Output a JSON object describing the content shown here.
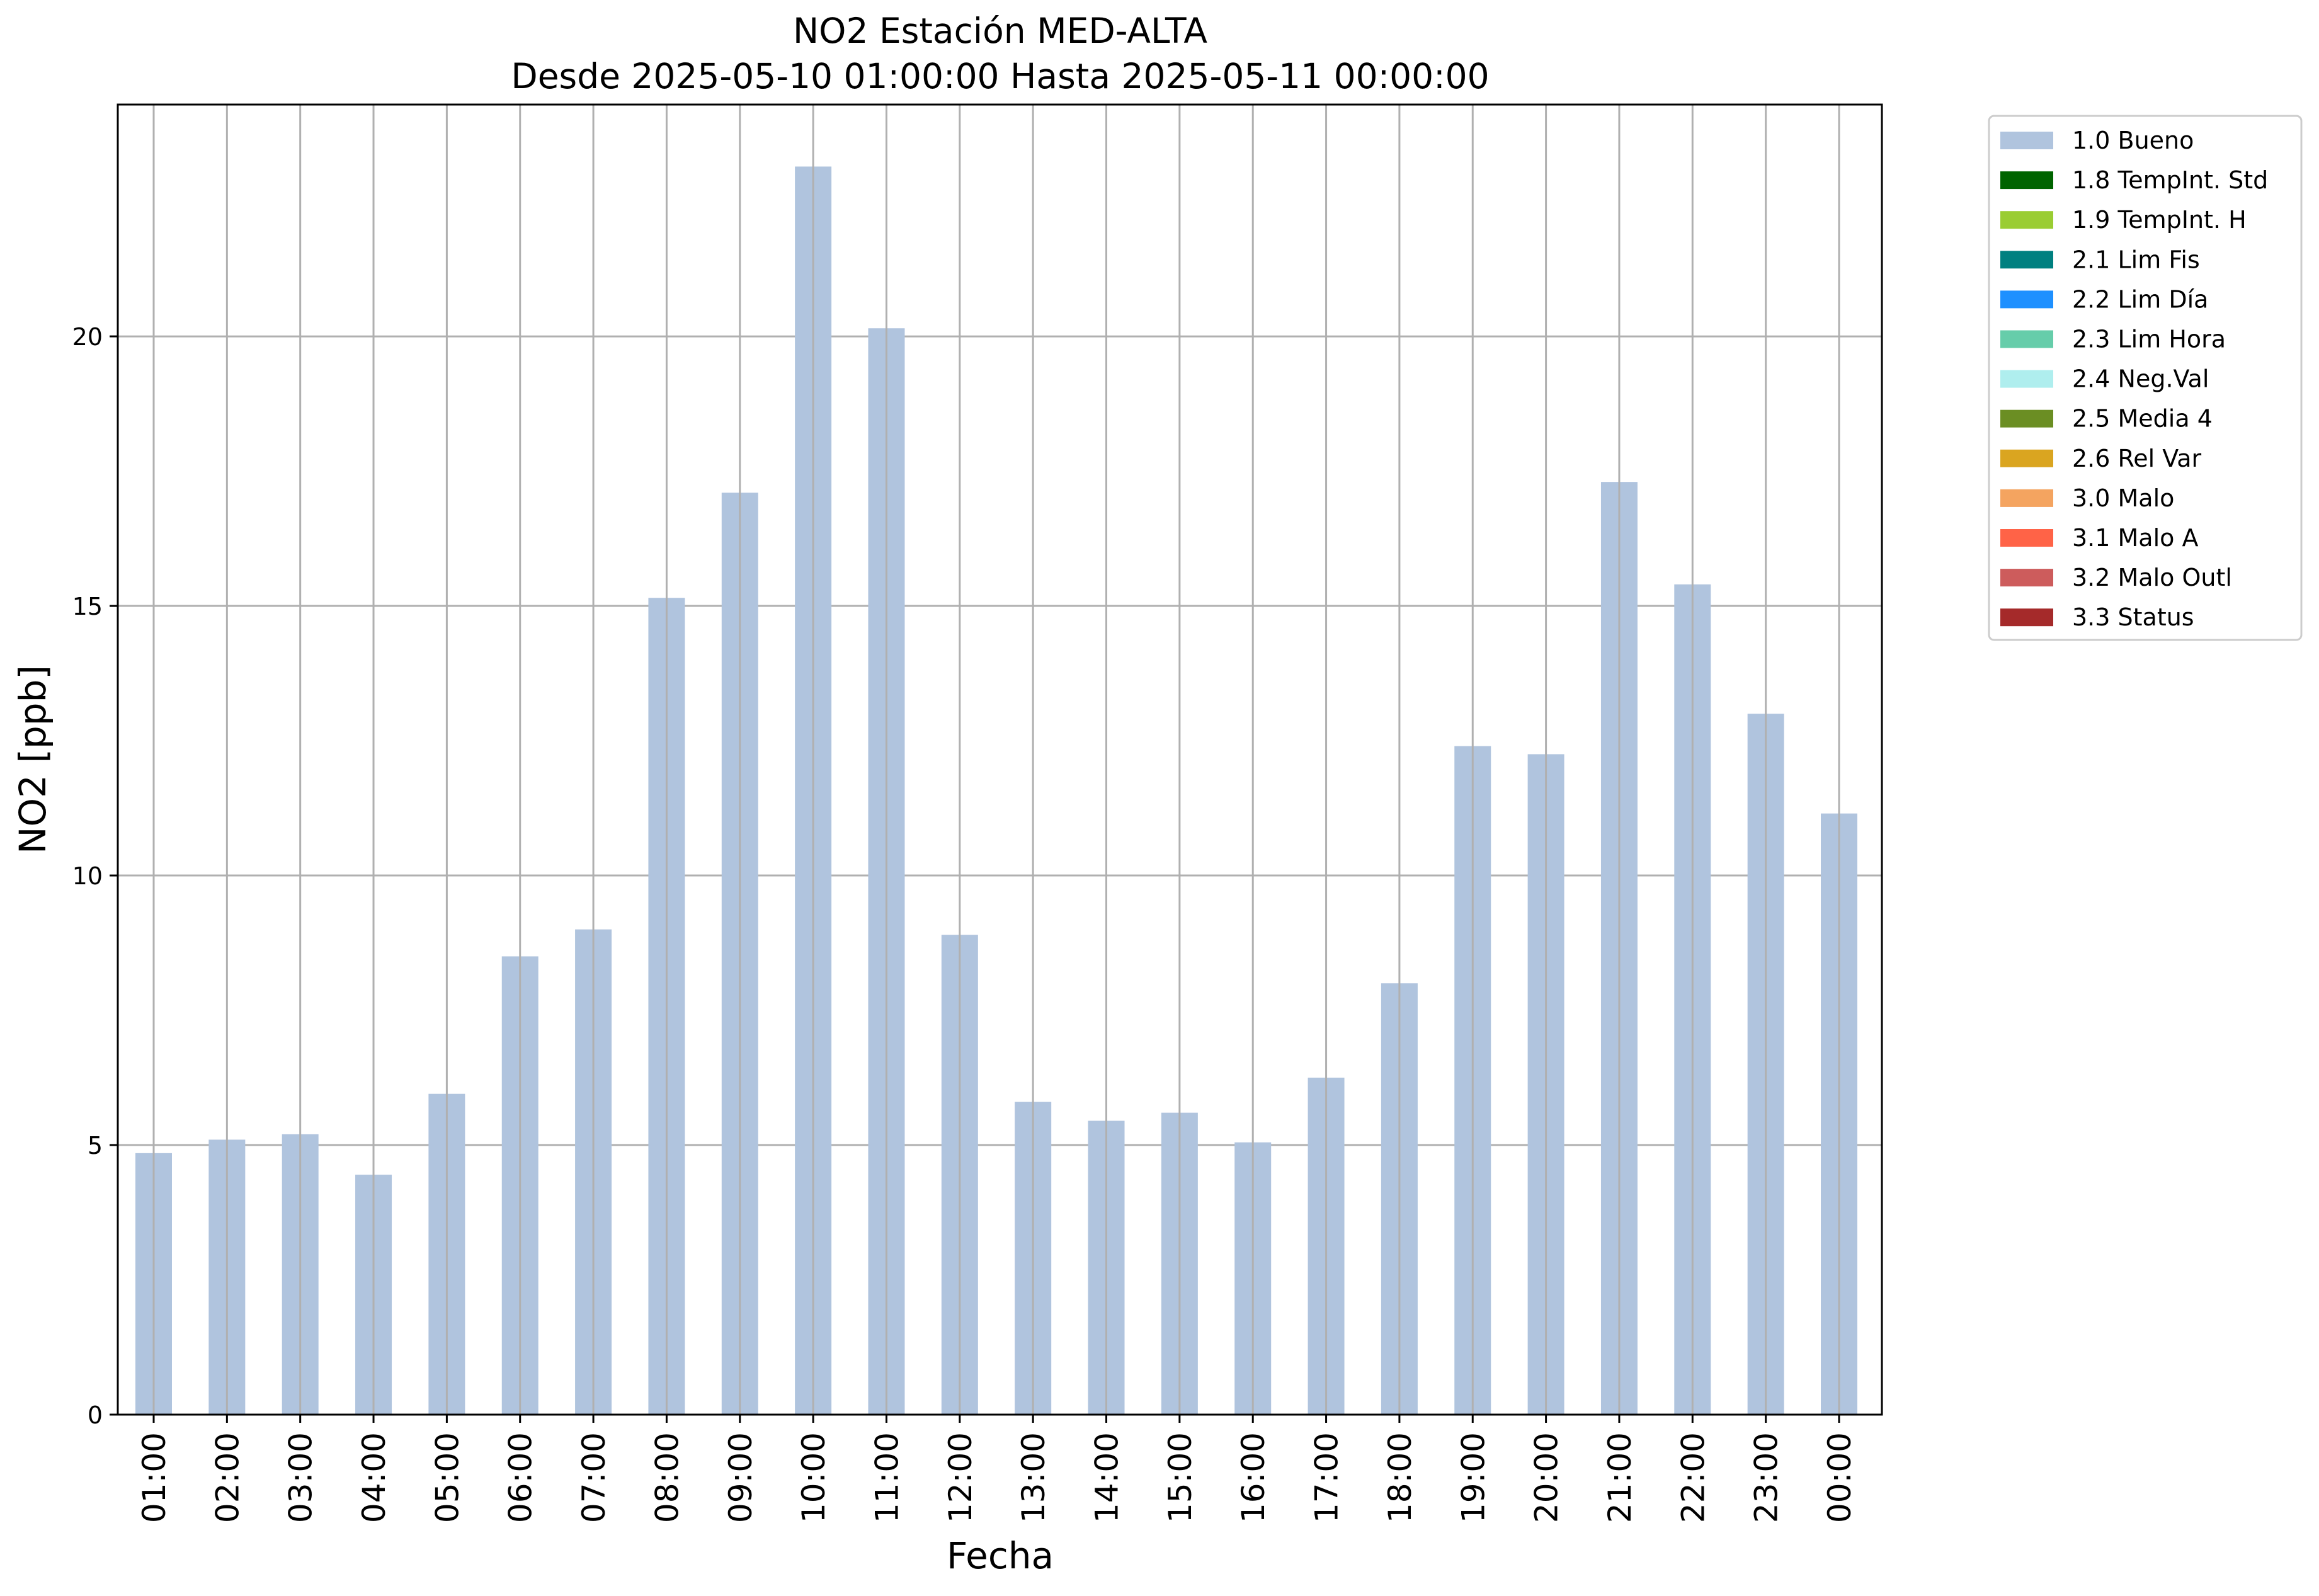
{
  "chart_data": {
    "type": "bar",
    "title": "NO2 Estación MED-ALTA",
    "subtitle": "Desde 2025-05-10 01:00:00 Hasta 2025-05-11 00:00:00",
    "xlabel": "Fecha",
    "ylabel": "NO2 [ppb]",
    "ylim": [
      0,
      24.3
    ],
    "yticks": [
      0,
      5,
      10,
      15,
      20
    ],
    "grid": true,
    "legend_placement": "outside-top-right",
    "categories": [
      "01:00",
      "02:00",
      "03:00",
      "04:00",
      "05:00",
      "06:00",
      "07:00",
      "08:00",
      "09:00",
      "10:00",
      "11:00",
      "12:00",
      "13:00",
      "14:00",
      "15:00",
      "16:00",
      "17:00",
      "18:00",
      "19:00",
      "20:00",
      "21:00",
      "22:00",
      "23:00",
      "00:00"
    ],
    "series": [
      {
        "name": "1.0 Bueno",
        "color": "#b0c4de",
        "values": [
          4.85,
          5.1,
          5.2,
          4.45,
          5.95,
          8.5,
          9.0,
          15.15,
          17.1,
          23.15,
          20.15,
          8.9,
          5.8,
          5.45,
          5.6,
          5.05,
          6.25,
          8.0,
          12.4,
          12.25,
          17.3,
          15.4,
          13.0,
          11.15
        ]
      }
    ],
    "legend": [
      {
        "label": "1.0 Bueno",
        "color": "#b0c4de"
      },
      {
        "label": "1.8 TempInt. Std",
        "color": "#006400"
      },
      {
        "label": "1.9 TempInt. H",
        "color": "#9acd32"
      },
      {
        "label": "2.1 Lim Fis",
        "color": "#008080"
      },
      {
        "label": "2.2 Lim Día",
        "color": "#1e90ff"
      },
      {
        "label": "2.3 Lim Hora",
        "color": "#66cdaa"
      },
      {
        "label": "2.4 Neg.Val",
        "color": "#afeeee"
      },
      {
        "label": "2.5 Media 4",
        "color": "#6b8e23"
      },
      {
        "label": "2.6 Rel Var",
        "color": "#daa520"
      },
      {
        "label": "3.0 Malo",
        "color": "#f4a460"
      },
      {
        "label": "3.1 Malo A",
        "color": "#ff6347"
      },
      {
        "label": "3.2 Malo Outl",
        "color": "#cd5c5c"
      },
      {
        "label": "3.3 Status",
        "color": "#a52a2a"
      }
    ]
  }
}
